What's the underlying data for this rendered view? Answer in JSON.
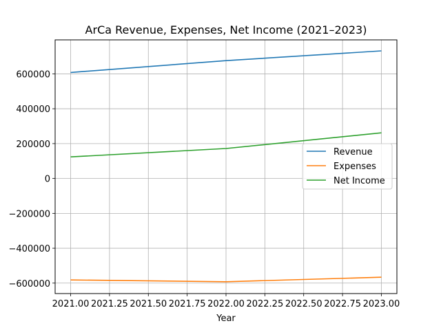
{
  "chart_data": {
    "type": "line",
    "title": "ArCa Revenue, Expenses, Net Income (2021–2023)",
    "xlabel": "Year",
    "ylabel": "",
    "x": [
      2021.0,
      2022.0,
      2023.0
    ],
    "xticks": [
      "2021.00",
      "2021.25",
      "2021.50",
      "2021.75",
      "2022.00",
      "2022.25",
      "2022.50",
      "2022.75",
      "2023.00"
    ],
    "xtick_values": [
      2021.0,
      2021.25,
      2021.5,
      2021.75,
      2022.0,
      2022.25,
      2022.5,
      2022.75,
      2023.0
    ],
    "yticks": [
      "600000",
      "400000",
      "200000",
      "0",
      "−200000",
      "−400000",
      "−600000"
    ],
    "ytick_values": [
      600000,
      400000,
      200000,
      0,
      -200000,
      -400000,
      -600000
    ],
    "xlim": [
      2020.9,
      2023.1
    ],
    "ylim": [
      -660000,
      795000
    ],
    "grid": true,
    "legend_position": "center-right",
    "series": [
      {
        "name": "Revenue",
        "color": "#1f77b4",
        "values": [
          608000,
          676000,
          732000
        ]
      },
      {
        "name": "Expenses",
        "color": "#ff7f0e",
        "values": [
          -582000,
          -592000,
          -566000
        ]
      },
      {
        "name": "Net Income",
        "color": "#2ca02c",
        "values": [
          124000,
          172000,
          262000
        ]
      }
    ]
  }
}
